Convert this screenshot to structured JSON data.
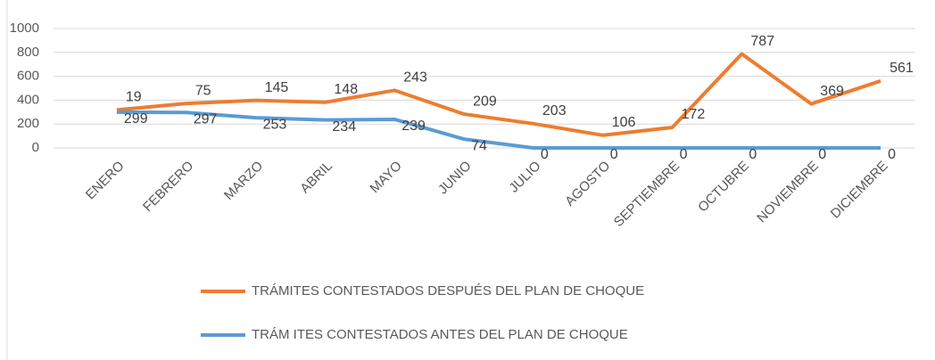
{
  "chart_data": {
    "type": "line",
    "stacked": true,
    "categories": [
      "ENERO",
      "FEBRERO",
      "MARZO",
      "ABRIL",
      "MAYO",
      "JUNIO",
      "JULIO",
      "AGOSTO",
      "SEPTIEMBRE",
      "OCTUBRE",
      "NOVIEMBRE",
      "DICIEMBRE"
    ],
    "series": [
      {
        "name": "TRÁM ITES CONTESTADOS ANTES DEL PLAN DE CHOQUE",
        "color": "#5b9bd5",
        "values": [
          299,
          297,
          253,
          234,
          239,
          74,
          0,
          0,
          0,
          0,
          0,
          0
        ]
      },
      {
        "name": "TRÁMITES CONTESTADOS DESPUÉS DEL PLAN DE CHOQUE",
        "color": "#ed7d31",
        "values": [
          19,
          75,
          145,
          148,
          243,
          209,
          203,
          106,
          172,
          787,
          369,
          561
        ]
      }
    ],
    "ylim": [
      0,
      1000
    ],
    "yticks": [
      0,
      200,
      400,
      600,
      800,
      1000
    ],
    "grid": true
  }
}
